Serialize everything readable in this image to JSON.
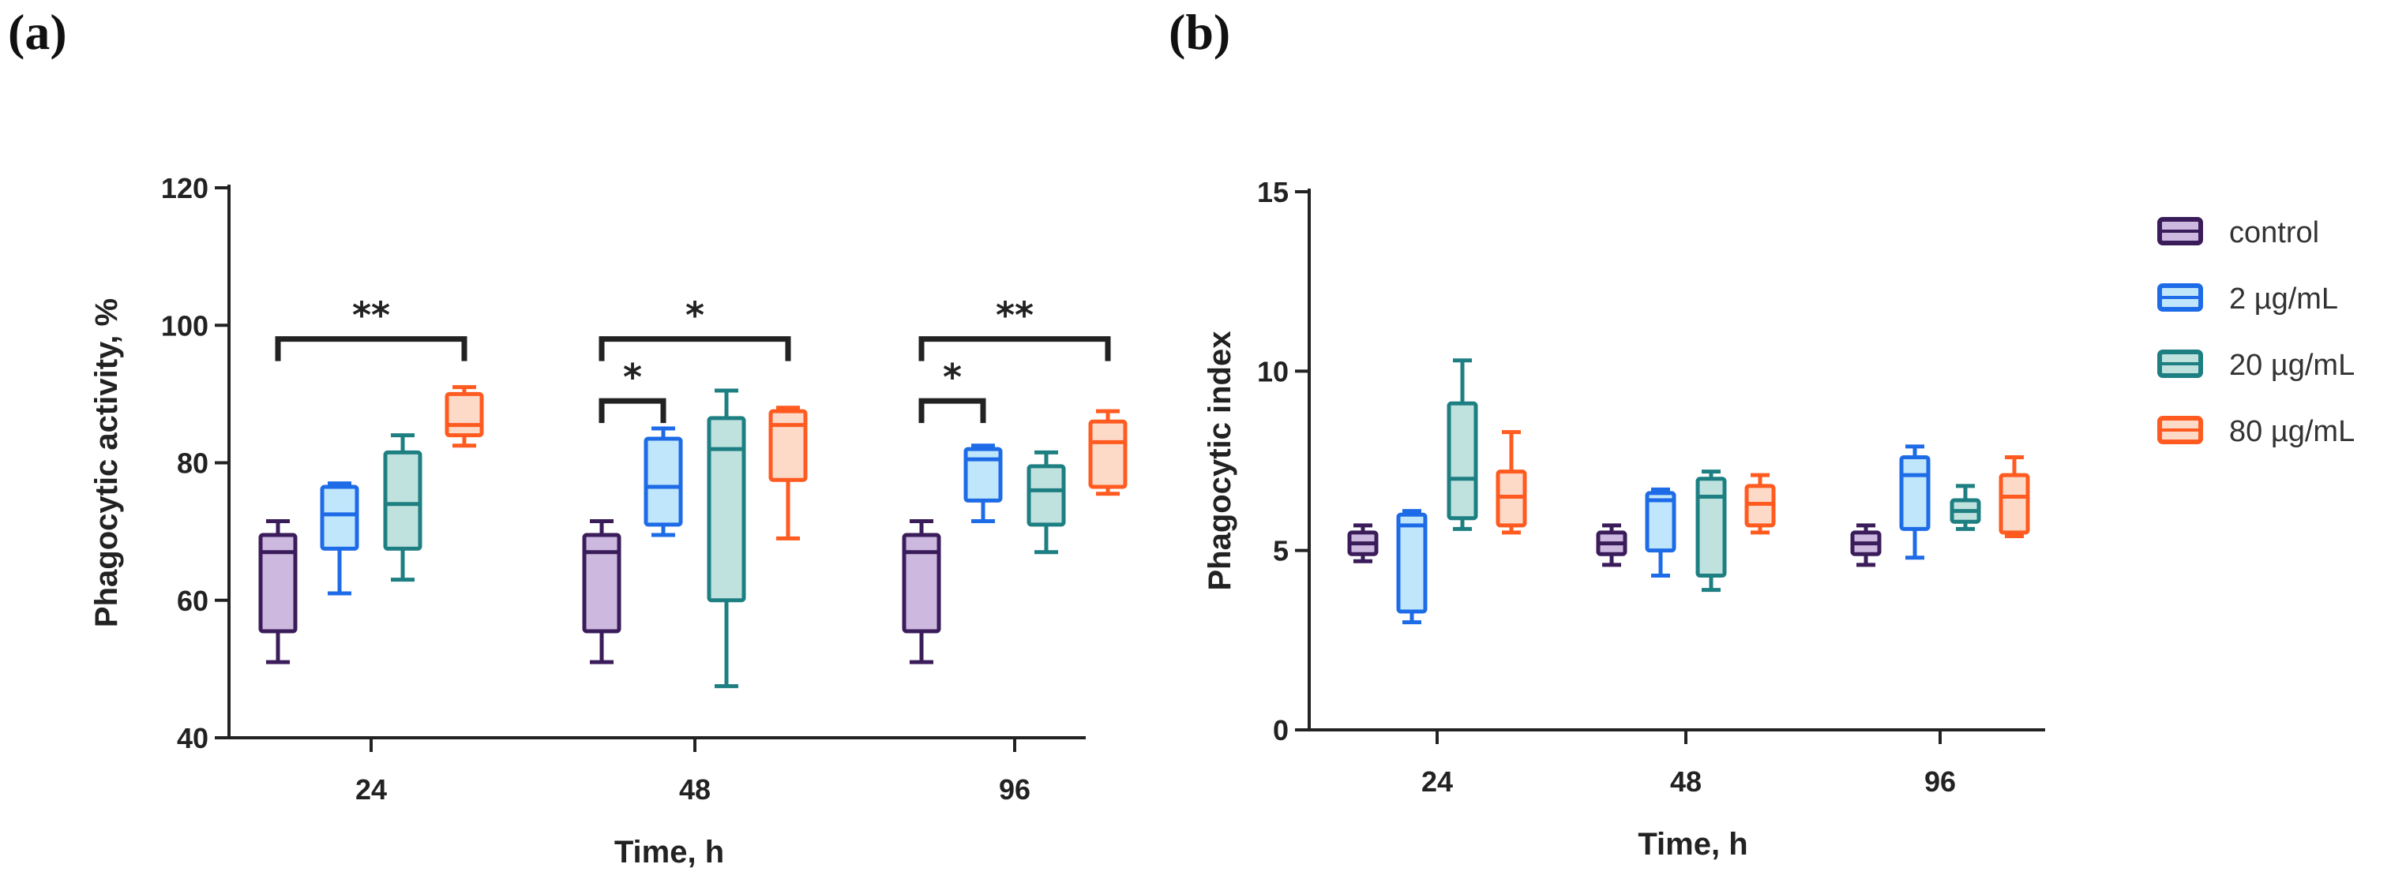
{
  "panels": {
    "a_label": "(a)",
    "b_label": "(b)"
  },
  "legend": [
    {
      "name": "control",
      "color": "#3b1c5a",
      "fill": "#cdb9e0"
    },
    {
      "name": "2 µg/mL",
      "color": "#1e6be8",
      "fill": "#bfe6fb"
    },
    {
      "name": "20 µg/mL",
      "color": "#1e7f82",
      "fill": "#bfe2df"
    },
    {
      "name": "80 µg/mL",
      "color": "#ff5a1f",
      "fill": "#fdd9c8"
    }
  ],
  "chart_data": [
    {
      "type": "box",
      "panel": "(a)",
      "xlabel": "Time, h",
      "ylabel": "Phagocytic activity, %",
      "categories": [
        "24",
        "48",
        "96"
      ],
      "ylim": [
        40,
        120
      ],
      "yticks": [
        "40",
        "60",
        "80",
        "100",
        "120"
      ],
      "series": [
        {
          "name": "control",
          "boxes": [
            {
              "min": 51,
              "q1": 55.5,
              "median": 67,
              "q3": 69.5,
              "max": 71.5
            },
            {
              "min": 51,
              "q1": 55.5,
              "median": 67,
              "q3": 69.5,
              "max": 71.5
            },
            {
              "min": 51,
              "q1": 55.5,
              "median": 67,
              "q3": 69.5,
              "max": 71.5
            }
          ]
        },
        {
          "name": "2 µg/mL",
          "boxes": [
            {
              "min": 61,
              "q1": 67.5,
              "median": 72.5,
              "q3": 76.5,
              "max": 77
            },
            {
              "min": 69.5,
              "q1": 71,
              "median": 76.5,
              "q3": 83.5,
              "max": 85
            },
            {
              "min": 71.5,
              "q1": 74.5,
              "median": 80.5,
              "q3": 82,
              "max": 82.5
            }
          ]
        },
        {
          "name": "20 µg/mL",
          "boxes": [
            {
              "min": 63,
              "q1": 67.5,
              "median": 74,
              "q3": 81.5,
              "max": 84
            },
            {
              "min": 47.5,
              "q1": 60,
              "median": 82,
              "q3": 86.5,
              "max": 90.5
            },
            {
              "min": 67,
              "q1": 71,
              "median": 76,
              "q3": 79.5,
              "max": 81.5
            }
          ]
        },
        {
          "name": "80 µg/mL",
          "boxes": [
            {
              "min": 82.5,
              "q1": 84,
              "median": 85.5,
              "q3": 90,
              "max": 91
            },
            {
              "min": 69,
              "q1": 77.5,
              "median": 85.5,
              "q3": 87.5,
              "max": 88
            },
            {
              "min": 75.5,
              "q1": 76.5,
              "median": 83,
              "q3": 86,
              "max": 87.5
            }
          ]
        }
      ],
      "significance": [
        {
          "category": 0,
          "from": 0,
          "to": 3,
          "y": 98,
          "label": "**"
        },
        {
          "category": 1,
          "from": 0,
          "to": 3,
          "y": 98,
          "label": "*"
        },
        {
          "category": 1,
          "from": 0,
          "to": 1,
          "y": 89,
          "label": "*"
        },
        {
          "category": 2,
          "from": 0,
          "to": 3,
          "y": 98,
          "label": "**"
        },
        {
          "category": 2,
          "from": 0,
          "to": 1,
          "y": 89,
          "label": "*"
        }
      ]
    },
    {
      "type": "box",
      "panel": "(b)",
      "xlabel": "Time, h",
      "ylabel": "Phagocytic index",
      "categories": [
        "24",
        "48",
        "96"
      ],
      "ylim": [
        0,
        15
      ],
      "yticks": [
        "0",
        "5",
        "10",
        "15"
      ],
      "series": [
        {
          "name": "control",
          "boxes": [
            {
              "min": 4.7,
              "q1": 4.9,
              "median": 5.2,
              "q3": 5.5,
              "max": 5.7
            },
            {
              "min": 4.6,
              "q1": 4.9,
              "median": 5.2,
              "q3": 5.5,
              "max": 5.7
            },
            {
              "min": 4.6,
              "q1": 4.9,
              "median": 5.2,
              "q3": 5.5,
              "max": 5.7
            }
          ]
        },
        {
          "name": "2 µg/mL",
          "boxes": [
            {
              "min": 3.0,
              "q1": 3.3,
              "median": 5.7,
              "q3": 6.0,
              "max": 6.1
            },
            {
              "min": 4.3,
              "q1": 5.0,
              "median": 6.4,
              "q3": 6.6,
              "max": 6.7
            },
            {
              "min": 4.8,
              "q1": 5.6,
              "median": 7.1,
              "q3": 7.6,
              "max": 7.9
            }
          ]
        },
        {
          "name": "20 µg/mL",
          "boxes": [
            {
              "min": 5.6,
              "q1": 5.9,
              "median": 7.0,
              "q3": 9.1,
              "max": 10.3
            },
            {
              "min": 3.9,
              "q1": 4.3,
              "median": 6.5,
              "q3": 7.0,
              "max": 7.2
            },
            {
              "min": 5.6,
              "q1": 5.8,
              "median": 6.1,
              "q3": 6.4,
              "max": 6.8
            }
          ]
        },
        {
          "name": "80 µg/mL",
          "boxes": [
            {
              "min": 5.5,
              "q1": 5.7,
              "median": 6.5,
              "q3": 7.2,
              "max": 8.3
            },
            {
              "min": 5.5,
              "q1": 5.7,
              "median": 6.3,
              "q3": 6.8,
              "max": 7.1
            },
            {
              "min": 5.4,
              "q1": 5.5,
              "median": 6.5,
              "q3": 7.1,
              "max": 7.6
            }
          ]
        }
      ]
    }
  ]
}
